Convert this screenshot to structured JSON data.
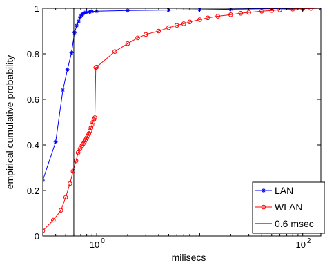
{
  "chart_data": {
    "type": "line",
    "xlabel": "milisecs",
    "ylabel": "empirical cumulative probability",
    "xscale": "log",
    "xlim": [
      0.3,
      150
    ],
    "ylim": [
      0,
      1
    ],
    "yticks": [
      0,
      0.2,
      0.4,
      0.6,
      0.8,
      1
    ],
    "ytick_labels": [
      "0",
      "0.2",
      "0.4",
      "0.6",
      "0.8",
      "1"
    ],
    "xticks": [
      1,
      100
    ],
    "xtick_labels": [
      {
        "base": "10",
        "exp": "0"
      },
      {
        "base": "10",
        "exp": "2"
      }
    ],
    "legend_position": "bottom-right",
    "series": [
      {
        "name": "LAN",
        "color": "#0000ff",
        "marker": "star",
        "x": [
          0.3,
          0.4,
          0.47,
          0.52,
          0.57,
          0.61,
          0.64,
          0.67,
          0.69,
          0.71,
          0.73,
          0.76,
          0.8,
          0.85,
          0.9,
          1.0,
          2,
          5,
          10,
          20,
          50,
          100,
          150
        ],
        "y": [
          0.245,
          0.413,
          0.641,
          0.731,
          0.805,
          0.893,
          0.924,
          0.943,
          0.96,
          0.97,
          0.975,
          0.98,
          0.982,
          0.984,
          0.986,
          0.987,
          0.99,
          0.992,
          0.994,
          0.996,
          0.998,
          0.999,
          1.0
        ]
      },
      {
        "name": "WLAN",
        "color": "#ff0000",
        "marker": "circle",
        "x": [
          0.3,
          0.38,
          0.45,
          0.5,
          0.55,
          0.59,
          0.63,
          0.66,
          0.69,
          0.72,
          0.74,
          0.76,
          0.78,
          0.8,
          0.82,
          0.84,
          0.86,
          0.88,
          0.9,
          0.92,
          0.94,
          0.96,
          0.98,
          1.0,
          1.5,
          2.0,
          2.5,
          3,
          4,
          5,
          6,
          7,
          8,
          10,
          12,
          15,
          20,
          25,
          30,
          40,
          50,
          60,
          80,
          100,
          120,
          150
        ],
        "y": [
          0.023,
          0.07,
          0.113,
          0.17,
          0.23,
          0.285,
          0.33,
          0.366,
          0.383,
          0.397,
          0.405,
          0.413,
          0.422,
          0.431,
          0.44,
          0.45,
          0.462,
          0.475,
          0.488,
          0.5,
          0.512,
          0.52,
          0.74,
          0.742,
          0.81,
          0.845,
          0.87,
          0.885,
          0.9,
          0.915,
          0.925,
          0.932,
          0.94,
          0.95,
          0.958,
          0.965,
          0.972,
          0.978,
          0.982,
          0.987,
          0.99,
          0.993,
          0.996,
          0.998,
          0.999,
          1.0
        ]
      },
      {
        "name": "0.6 msec",
        "color": "#000000",
        "marker": "none",
        "vline_x": 0.6
      }
    ]
  }
}
